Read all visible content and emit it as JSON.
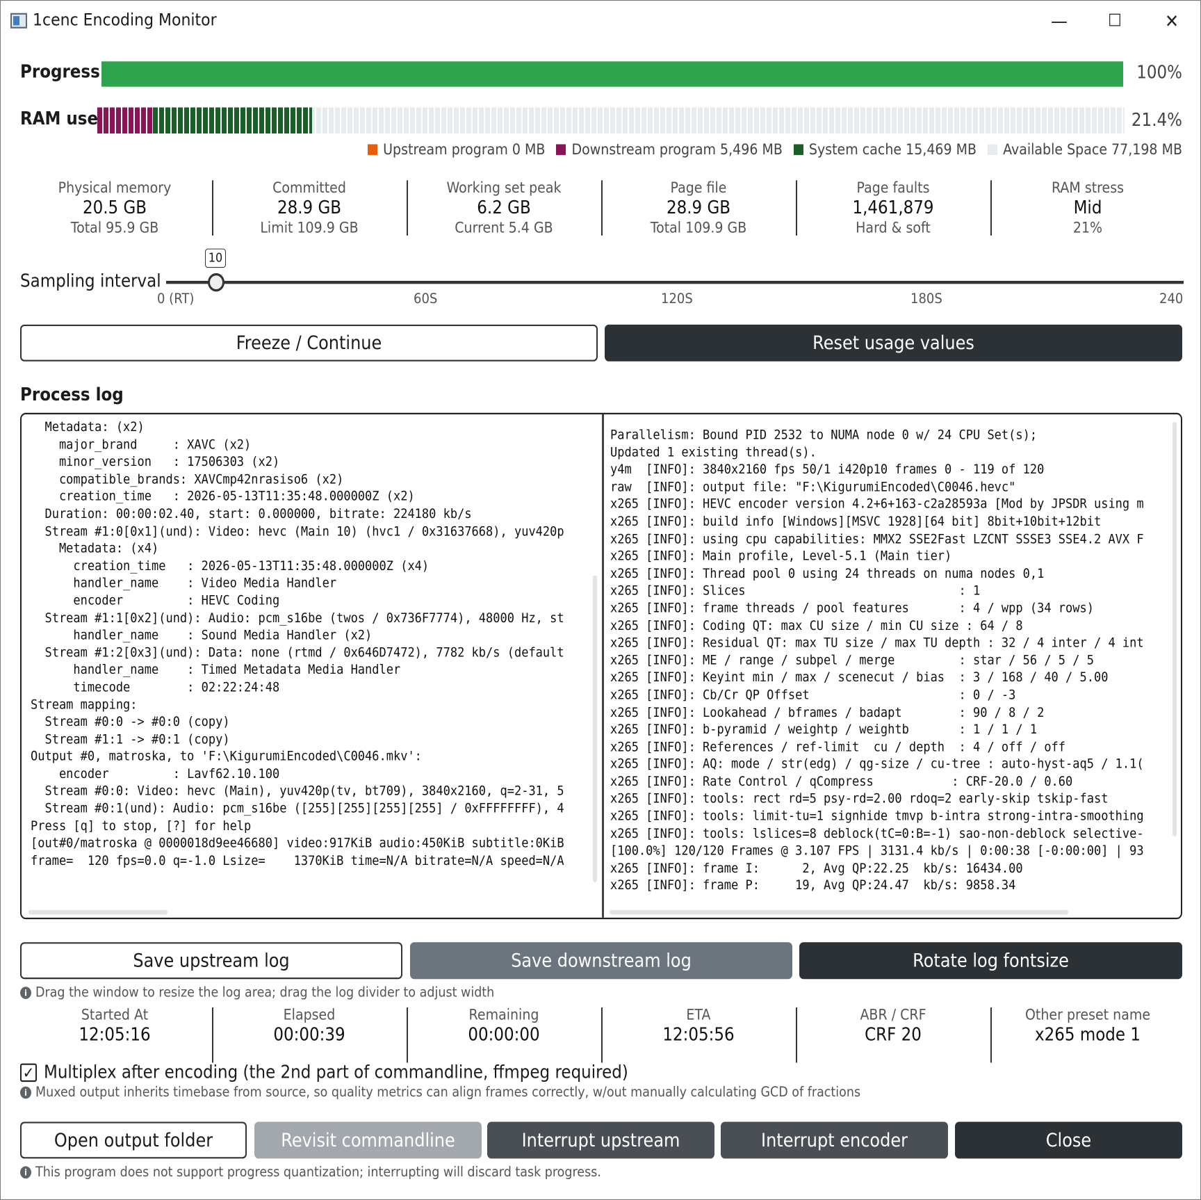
{
  "window": {
    "title": "1cenc Encoding Monitor",
    "minimize": "—",
    "maximize": "☐",
    "close": "✕"
  },
  "progress": {
    "label": "Progress",
    "value": 1.0,
    "percent_text": "100%",
    "color": "#2ea44f"
  },
  "ram": {
    "label": "RAM use",
    "percent_text": "21.4%",
    "downstream_fraction": 0.054,
    "cache_fraction": 0.155,
    "legend": [
      {
        "name": "Upstream program 0 MB",
        "color": "#e85d0c"
      },
      {
        "name": "Downstream program 5,496 MB",
        "color": "#8b1457"
      },
      {
        "name": "System cache 15,469 MB",
        "color": "#1a5e2a"
      },
      {
        "name": "Available Space 77,198 MB",
        "color": "#e9ecef"
      }
    ]
  },
  "memory_stats": [
    {
      "label": "Physical memory",
      "value": "20.5 GB",
      "sub": "Total 95.9 GB"
    },
    {
      "label": "Committed",
      "value": "28.9 GB",
      "sub": "Limit 109.9 GB"
    },
    {
      "label": "Working set peak",
      "value": "6.2 GB",
      "sub": "Current 5.4 GB"
    },
    {
      "label": "Page file",
      "value": "28.9 GB",
      "sub": "Total 109.9 GB"
    },
    {
      "label": "Page faults",
      "value": "1,461,879",
      "sub": "Hard & soft"
    },
    {
      "label": "RAM stress",
      "value": "Mid",
      "sub": "21%"
    }
  ],
  "sampling": {
    "label": "Sampling interval",
    "value": "10",
    "ticks": [
      "0 (RT)",
      "60S",
      "120S",
      "180S",
      "240S"
    ]
  },
  "buttons": {
    "freeze": "Freeze / Continue",
    "reset": "Reset usage values",
    "save_up": "Save upstream log",
    "save_down": "Save downstream log",
    "rotate": "Rotate log fontsize",
    "open_folder": "Open output folder",
    "revisit": "Revisit commandline",
    "interrupt_up": "Interrupt upstream",
    "interrupt_enc": "Interrupt encoder",
    "close": "Close"
  },
  "process_log": {
    "heading": "Process log",
    "upstream": [
      "  Metadata: (x2)",
      "    major_brand     : XAVC (x2)",
      "    minor_version   : 17506303 (x2)",
      "    compatible_brands: XAVCmp42nrasiso6 (x2)",
      "    creation_time   : 2026-05-13T11:35:48.000000Z (x2)",
      "  Duration: 00:00:02.40, start: 0.000000, bitrate: 224180 kb/s",
      "  Stream #1:0[0x1](und): Video: hevc (Main 10) (hvc1 / 0x31637668), yuv420p",
      "    Metadata: (x4)",
      "      creation_time   : 2026-05-13T11:35:48.000000Z (x4)",
      "      handler_name    : Video Media Handler",
      "      encoder         : HEVC Coding",
      "  Stream #1:1[0x2](und): Audio: pcm_s16be (twos / 0x736F7774), 48000 Hz, st",
      "      handler_name    : Sound Media Handler (x2)",
      "  Stream #1:2[0x3](und): Data: none (rtmd / 0x646D7472), 7782 kb/s (default",
      "      handler_name    : Timed Metadata Media Handler",
      "      timecode        : 02:22:24:48",
      "Stream mapping:",
      "  Stream #0:0 -> #0:0 (copy)",
      "  Stream #1:1 -> #0:1 (copy)",
      "Output #0, matroska, to 'F:\\KigurumiEncoded\\C0046.mkv':",
      "    encoder         : Lavf62.10.100",
      "  Stream #0:0: Video: hevc (Main), yuv420p(tv, bt709), 3840x2160, q=2-31, 5",
      "  Stream #0:1(und): Audio: pcm_s16be ([255][255][255][255] / 0xFFFFFFFF), 4",
      "Press [q] to stop, [?] for help",
      "[out#0/matroska @ 0000018d9ee46680] video:917KiB audio:450KiB subtitle:0KiB",
      "frame=  120 fps=0.0 q=-1.0 Lsize=    1370KiB time=N/A bitrate=N/A speed=N/A"
    ],
    "downstream": [
      "Parallelism: Bound PID 2532 to NUMA node 0 w/ 24 CPU Set(s);",
      "Updated 1 existing thread(s).",
      "y4m  [INFO]: 3840x2160 fps 50/1 i420p10 frames 0 - 119 of 120",
      "raw  [INFO]: output file: \"F:\\KigurumiEncoded\\C0046.hevc\"",
      "x265 [INFO]: HEVC encoder version 4.2+6+163-c2a28593a [Mod by JPSDR using m",
      "x265 [INFO]: build info [Windows][MSVC 1928][64 bit] 8bit+10bit+12bit",
      "x265 [INFO]: using cpu capabilities: MMX2 SSE2Fast LZCNT SSSE3 SSE4.2 AVX F",
      "x265 [INFO]: Main profile, Level-5.1 (Main tier)",
      "x265 [INFO]: Thread pool 0 using 24 threads on numa nodes 0,1",
      "x265 [INFO]: Slices                              : 1",
      "x265 [INFO]: frame threads / pool features       : 4 / wpp (34 rows)",
      "x265 [INFO]: Coding QT: max CU size / min CU size : 64 / 8",
      "x265 [INFO]: Residual QT: max TU size / max TU depth : 32 / 4 inter / 4 int",
      "x265 [INFO]: ME / range / subpel / merge         : star / 56 / 5 / 5",
      "x265 [INFO]: Keyint min / max / scenecut / bias  : 3 / 168 / 40 / 5.00",
      "x265 [INFO]: Cb/Cr QP Offset                     : 0 / -3",
      "x265 [INFO]: Lookahead / bframes / badapt        : 90 / 8 / 2",
      "x265 [INFO]: b-pyramid / weightp / weightb       : 1 / 1 / 1",
      "x265 [INFO]: References / ref-limit  cu / depth  : 4 / off / off",
      "x265 [INFO]: AQ: mode / str(edg) / qg-size / cu-tree : auto-hyst-aq5 / 1.1(",
      "x265 [INFO]: Rate Control / qCompress           : CRF-20.0 / 0.60",
      "x265 [INFO]: tools: rect rd=5 psy-rd=2.00 rdoq=2 early-skip tskip-fast",
      "x265 [INFO]: tools: limit-tu=1 signhide tmvp b-intra strong-intra-smoothing",
      "x265 [INFO]: tools: lslices=8 deblock(tC=0:B=-1) sao-non-deblock selective-",
      "[100.0%] 120/120 Frames @ 3.107 FPS | 3131.4 kb/s | 0:00:38 [-0:00:00] | 93",
      "x265 [INFO]: frame I:      2, Avg QP:22.25  kb/s: 16434.00",
      "x265 [INFO]: frame P:     19, Avg QP:24.47  kb/s: 9858.34"
    ]
  },
  "hints": {
    "drag": "Drag the window to resize the log area; drag the log divider to adjust width",
    "muxed": "Muxed output inherits timebase from source, so quality metrics can align frames correctly, w/out manually calculating GCD of fractions",
    "interrupt": "This program does not support progress quantization; interrupting will discard task progress."
  },
  "time_stats": [
    {
      "label": "Started At",
      "value": "12:05:16"
    },
    {
      "label": "Elapsed",
      "value": "00:00:39"
    },
    {
      "label": "Remaining",
      "value": "00:00:00"
    },
    {
      "label": "ETA",
      "value": "12:05:56"
    },
    {
      "label": "ABR / CRF",
      "value": "CRF 20"
    },
    {
      "label": "Other preset name",
      "value": "x265 mode 1"
    }
  ],
  "multiplex": {
    "checked": true,
    "check_mark": "✓",
    "label": "Multiplex after encoding (the 2nd part of commandline, ffmpeg required)"
  }
}
